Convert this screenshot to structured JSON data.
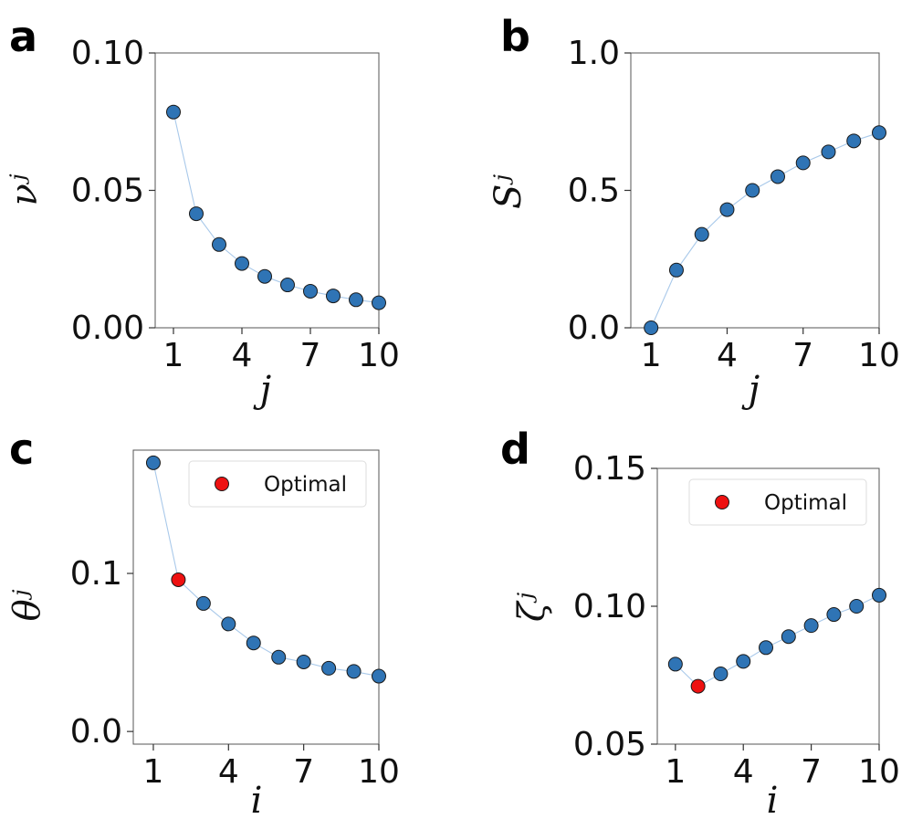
{
  "colors": {
    "marker": "#2f74b5",
    "line": "#a9c9ea",
    "optimal": "#ee1111"
  },
  "chart_data": [
    {
      "id": "a",
      "panel_label": "a",
      "type": "line",
      "xlabel": "j",
      "ylabel": "νʲ",
      "x": [
        1,
        2,
        3,
        4,
        5,
        6,
        7,
        8,
        9,
        10
      ],
      "xlim": [
        0.2,
        10
      ],
      "xticks": [
        1,
        4,
        7,
        10
      ],
      "ylim": [
        0.0,
        0.1
      ],
      "yticks": [
        0.0,
        0.05,
        0.1
      ],
      "ytick_labels": [
        "0.00",
        "0.05",
        "0.10"
      ],
      "series": [
        {
          "values": [
            0.0785,
            0.0415,
            0.0303,
            0.0234,
            0.0187,
            0.0156,
            0.0133,
            0.0116,
            0.0102,
            0.0091
          ]
        }
      ],
      "grid": false
    },
    {
      "id": "b",
      "panel_label": "b",
      "type": "line",
      "xlabel": "j",
      "ylabel": "Sʲ",
      "x": [
        1,
        2,
        3,
        4,
        5,
        6,
        7,
        8,
        9,
        10
      ],
      "xlim": [
        0.2,
        10
      ],
      "xticks": [
        1,
        4,
        7,
        10
      ],
      "ylim": [
        0.0,
        1.0
      ],
      "yticks": [
        0.0,
        0.5,
        1.0
      ],
      "ytick_labels": [
        "0.0",
        "0.5",
        "1.0"
      ],
      "series": [
        {
          "values": [
            0.0,
            0.21,
            0.34,
            0.43,
            0.5,
            0.55,
            0.6,
            0.64,
            0.68,
            0.71
          ]
        }
      ],
      "grid": false
    },
    {
      "id": "c",
      "panel_label": "c",
      "type": "line",
      "xlabel": "i",
      "ylabel": "θʲ",
      "x": [
        1,
        2,
        3,
        4,
        5,
        6,
        7,
        8,
        9,
        10
      ],
      "xlim": [
        0.2,
        10
      ],
      "xticks": [
        1,
        4,
        7,
        10
      ],
      "ylim": [
        -0.008,
        0.178
      ],
      "yticks": [
        0.0,
        0.1
      ],
      "ytick_labels": [
        "0.0",
        "0.1"
      ],
      "series": [
        {
          "values": [
            0.17,
            0.096,
            0.081,
            0.068,
            0.056,
            0.047,
            0.044,
            0.04,
            0.038,
            0.035
          ]
        }
      ],
      "optimal": {
        "x": 2,
        "y": 0.096
      },
      "legend": {
        "label": "Optimal",
        "position": "upper-right"
      },
      "grid": false
    },
    {
      "id": "d",
      "panel_label": "d",
      "type": "line",
      "xlabel": "i",
      "ylabel": "ζʲ",
      "x": [
        1,
        2,
        3,
        4,
        5,
        6,
        7,
        8,
        9,
        10
      ],
      "xlim": [
        0.2,
        10
      ],
      "xticks": [
        1,
        4,
        7,
        10
      ],
      "ylim": [
        0.05,
        0.15
      ],
      "yticks": [
        0.05,
        0.1,
        0.15
      ],
      "ytick_labels": [
        "0.05",
        "0.10",
        "0.15"
      ],
      "series": [
        {
          "values": [
            0.079,
            0.071,
            0.0755,
            0.08,
            0.085,
            0.089,
            0.093,
            0.097,
            0.1,
            0.104
          ]
        }
      ],
      "optimal": {
        "x": 2,
        "y": 0.071
      },
      "legend": {
        "label": "Optimal",
        "position": "upper-right"
      },
      "grid": false
    }
  ]
}
